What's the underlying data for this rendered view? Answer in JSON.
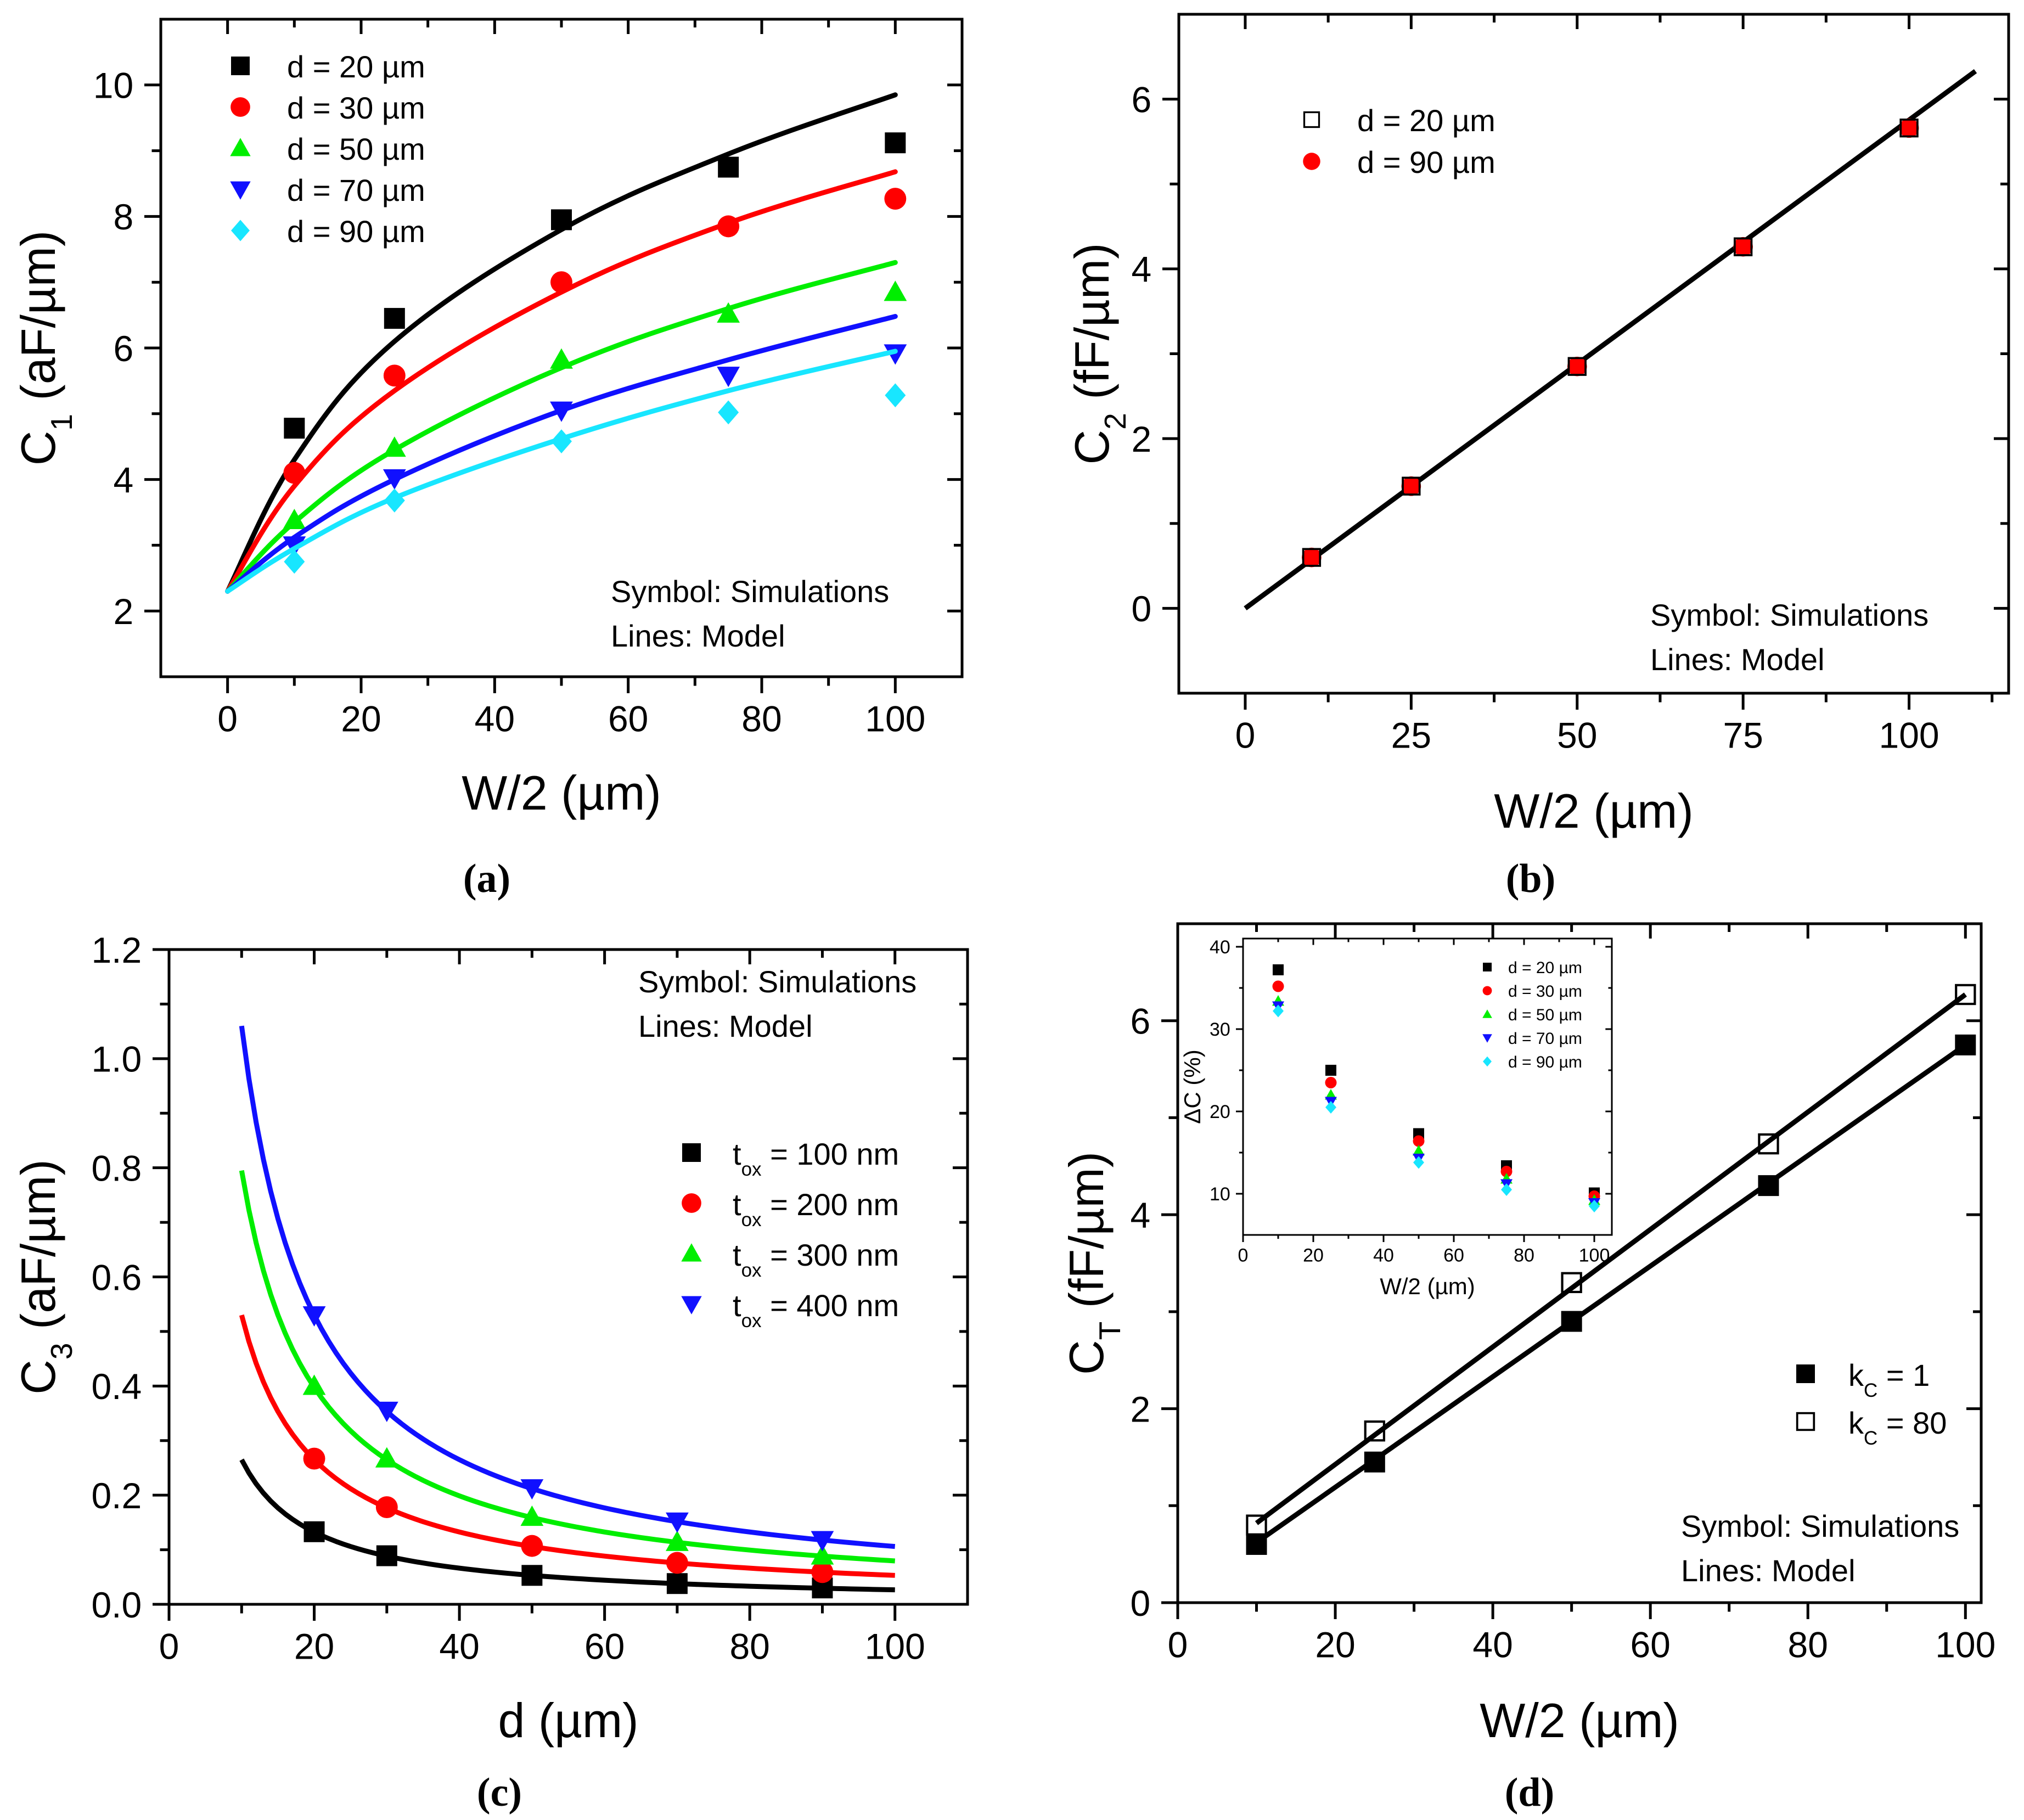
{
  "colors": {
    "black": "#000000",
    "red": "#ff0000",
    "green": "#00ee00",
    "blue": "#1010ff",
    "cyan": "#18e6ff"
  },
  "chart_data": [
    {
      "id": "a",
      "type": "scatter",
      "caption": "(a)",
      "xlabel": "W/2 (µm)",
      "ylabel": "C",
      "ylabel_sub": "1",
      "ylabel_unit": " (aF/µm)",
      "xlim": [
        -10,
        110
      ],
      "ylim": [
        1,
        11
      ],
      "xticks": [
        0,
        20,
        40,
        60,
        80,
        100
      ],
      "yticks": [
        2,
        4,
        6,
        8,
        10
      ],
      "annotation": [
        "Symbol: Simulations",
        "Lines: Model"
      ],
      "x": [
        10,
        25,
        50,
        75,
        100
      ],
      "series": [
        {
          "name": "d = 20 µm",
          "marker": "square",
          "color": "black",
          "values": [
            4.78,
            6.45,
            7.95,
            8.75,
            9.12
          ],
          "model": {
            "x": [
              0,
              10,
              25,
              50,
              75,
              100
            ],
            "y": [
              2.3,
              4.3,
              6.1,
              7.8,
              8.95,
              9.85
            ]
          }
        },
        {
          "name": "d = 30 µm",
          "marker": "circle",
          "color": "red",
          "values": [
            4.1,
            5.58,
            7.0,
            7.85,
            8.27
          ],
          "model": {
            "x": [
              0,
              10,
              25,
              50,
              75,
              100
            ],
            "y": [
              2.3,
              3.9,
              5.35,
              6.85,
              7.9,
              8.68
            ]
          }
        },
        {
          "name": "d = 50 µm",
          "marker": "triangle-up",
          "color": "green",
          "values": [
            3.38,
            4.48,
            5.82,
            6.52,
            6.85
          ],
          "model": {
            "x": [
              0,
              10,
              25,
              50,
              75,
              100
            ],
            "y": [
              2.3,
              3.35,
              4.45,
              5.7,
              6.6,
              7.3
            ]
          }
        },
        {
          "name": "d = 70 µm",
          "marker": "triangle-down",
          "color": "blue",
          "values": [
            3.0,
            4.02,
            5.05,
            5.58,
            5.92
          ],
          "model": {
            "x": [
              0,
              10,
              25,
              50,
              75,
              100
            ],
            "y": [
              2.3,
              3.12,
              4.0,
              5.05,
              5.82,
              6.48
            ]
          }
        },
        {
          "name": "d = 90 µm",
          "marker": "diamond",
          "color": "cyan",
          "values": [
            2.75,
            3.68,
            4.58,
            5.02,
            5.28
          ],
          "model": {
            "x": [
              0,
              10,
              25,
              50,
              75,
              100
            ],
            "y": [
              2.3,
              2.95,
              3.72,
              4.62,
              5.35,
              5.95
            ]
          }
        }
      ]
    },
    {
      "id": "b",
      "type": "scatter",
      "caption": "(b)",
      "xlabel": "W/2 (µm)",
      "ylabel": "C",
      "ylabel_sub": "2",
      "ylabel_unit": " (fF/µm)",
      "xlim": [
        -10,
        115
      ],
      "ylim": [
        -1,
        7
      ],
      "xticks": [
        0,
        25,
        50,
        75,
        100
      ],
      "yticks": [
        0,
        2,
        4,
        6
      ],
      "annotation": [
        "Symbol: Simulations",
        "Lines: Model"
      ],
      "x": [
        10,
        25,
        50,
        75,
        100
      ],
      "series": [
        {
          "name": "d = 90 µm",
          "marker": "circle",
          "color": "red",
          "values": [
            0.6,
            1.44,
            2.85,
            4.26,
            5.66
          ]
        },
        {
          "name": "d = 20 µm",
          "marker": "square-open",
          "color": "black",
          "values": [
            0.6,
            1.44,
            2.85,
            4.26,
            5.66
          ]
        }
      ],
      "model": {
        "x": [
          0,
          110
        ],
        "y": [
          0,
          6.33
        ]
      }
    },
    {
      "id": "c",
      "type": "scatter",
      "caption": "(c)",
      "xlabel": "d (µm)",
      "ylabel": "C",
      "ylabel_sub": "3",
      "ylabel_unit": " (aF/µm)",
      "xlim": [
        0,
        110
      ],
      "ylim": [
        0,
        1.2
      ],
      "xticks": [
        0,
        20,
        40,
        60,
        80,
        100
      ],
      "yticks": [
        0.0,
        0.2,
        0.4,
        0.6,
        0.8,
        1.0,
        1.2
      ],
      "annotation": [
        "Symbol: Simulations",
        "Lines: Model"
      ],
      "x": [
        20,
        30,
        50,
        70,
        90
      ],
      "series": [
        {
          "name": "t",
          "name_sub": "ox",
          "name_rest": " = 100 nm",
          "marker": "square",
          "color": "black",
          "values": [
            0.133,
            0.089,
            0.053,
            0.038,
            0.03
          ],
          "model_k": 2.65
        },
        {
          "name": "t",
          "name_sub": "ox",
          "name_rest": " = 200 nm",
          "marker": "circle",
          "color": "red",
          "values": [
            0.267,
            0.178,
            0.107,
            0.076,
            0.059
          ],
          "model_k": 5.3
        },
        {
          "name": "t",
          "name_sub": "ox",
          "name_rest": " = 300 nm",
          "marker": "triangle-up",
          "color": "green",
          "values": [
            0.4,
            0.267,
            0.16,
            0.114,
            0.089
          ],
          "model_k": 7.95
        },
        {
          "name": "t",
          "name_sub": "ox",
          "name_rest": " = 400 nm",
          "marker": "triangle-down",
          "color": "blue",
          "values": [
            0.53,
            0.355,
            0.213,
            0.152,
            0.118
          ],
          "model_k": 10.6
        }
      ],
      "model_x_range": [
        10,
        100
      ]
    },
    {
      "id": "d",
      "type": "scatter",
      "caption": "(d)",
      "xlabel": "W/2 (µm)",
      "ylabel": "C",
      "ylabel_sub": "T",
      "ylabel_unit": " (fF/µm)",
      "xlim": [
        0,
        102
      ],
      "ylim": [
        0,
        7
      ],
      "xticks": [
        0,
        20,
        40,
        60,
        80,
        100
      ],
      "yticks": [
        0,
        2,
        4,
        6
      ],
      "annotation": [
        "Symbol: Simulations",
        "Lines: Model"
      ],
      "x": [
        10,
        25,
        50,
        75,
        100
      ],
      "series": [
        {
          "name": "k",
          "name_sub": "C",
          "name_rest": " = 1",
          "marker": "square",
          "color": "black",
          "values": [
            0.6,
            1.45,
            2.9,
            4.3,
            5.75
          ],
          "model": {
            "x": [
              10,
              100
            ],
            "y": [
              0.62,
              5.75
            ]
          }
        },
        {
          "name": "k",
          "name_sub": "C",
          "name_rest": " = 80",
          "marker": "square-open",
          "color": "black",
          "values": [
            0.8,
            1.77,
            3.3,
            4.73,
            6.27
          ],
          "model": {
            "x": [
              10,
              100
            ],
            "y": [
              0.82,
              6.27
            ]
          }
        }
      ],
      "inset": {
        "type": "scatter",
        "xlabel": "W/2 (µm)",
        "ylabel": "ΔC (%)",
        "xlim": [
          0,
          105
        ],
        "ylim": [
          5,
          41
        ],
        "xticks": [
          0,
          20,
          40,
          60,
          80,
          100
        ],
        "yticks": [
          10,
          20,
          30,
          40
        ],
        "x": [
          10,
          25,
          50,
          75,
          100
        ],
        "series": [
          {
            "name": "d = 20 µm",
            "marker": "square",
            "color": "black",
            "values": [
              37.2,
              25.0,
              17.3,
              13.4,
              10.1
            ]
          },
          {
            "name": "d = 30 µm",
            "marker": "circle",
            "color": "red",
            "values": [
              35.2,
              23.5,
              16.4,
              12.7,
              9.7
            ]
          },
          {
            "name": "d = 50 µm",
            "marker": "triangle-up",
            "color": "green",
            "values": [
              33.4,
              22.0,
              15.2,
              11.8,
              9.2
            ]
          },
          {
            "name": "d = 70 µm",
            "marker": "triangle-down",
            "color": "blue",
            "values": [
              32.8,
              21.2,
              14.3,
              11.2,
              8.9
            ]
          },
          {
            "name": "d = 90 µm",
            "marker": "diamond",
            "color": "cyan",
            "values": [
              32.2,
              20.5,
              13.8,
              10.5,
              8.5
            ]
          }
        ]
      }
    }
  ]
}
